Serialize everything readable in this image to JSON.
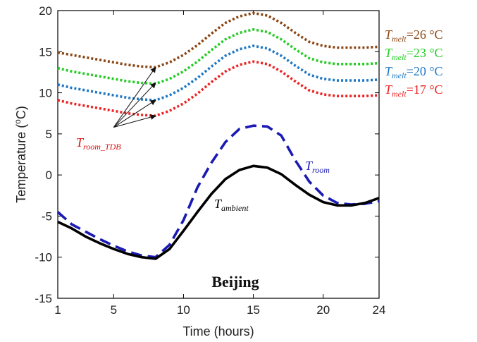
{
  "chart_data": {
    "type": "line",
    "xlabel_main": "Time (hours)",
    "ylabel_pre": "Temperature (",
    "ylabel_sup": "o",
    "ylabel_post": "C)",
    "xlim": [
      1,
      24
    ],
    "ylim": [
      -15,
      20
    ],
    "xticks": [
      "1",
      "5",
      "10",
      "15",
      "20",
      "24"
    ],
    "yticks": [
      "-15",
      "-10",
      "-5",
      "0",
      "5",
      "10",
      "15",
      "20"
    ],
    "grid": false,
    "region_label": "Beijing",
    "x": [
      1,
      2,
      3,
      4,
      5,
      6,
      7,
      8,
      9,
      10,
      11,
      12,
      13,
      14,
      15,
      16,
      17,
      18,
      19,
      20,
      21,
      22,
      23,
      24
    ],
    "series": [
      {
        "key": "t26",
        "color": "#8B4513",
        "style": "dotted",
        "label_main": "T",
        "label_sub": "melt",
        "label_value": "=26 °C",
        "values": [
          14.9,
          14.6,
          14.3,
          14.0,
          13.7,
          13.4,
          13.2,
          13.1,
          13.7,
          14.6,
          15.8,
          17.2,
          18.5,
          19.3,
          19.7,
          19.4,
          18.5,
          17.3,
          16.2,
          15.7,
          15.5,
          15.5,
          15.5,
          15.6
        ]
      },
      {
        "key": "t23",
        "color": "#22CC22",
        "style": "dotted",
        "label_main": "T",
        "label_sub": "melt",
        "label_value": "=23 °C",
        "values": [
          13.0,
          12.6,
          12.3,
          12.0,
          11.7,
          11.4,
          11.2,
          11.1,
          11.7,
          12.6,
          13.8,
          15.2,
          16.5,
          17.3,
          17.7,
          17.4,
          16.5,
          15.3,
          14.2,
          13.7,
          13.5,
          13.5,
          13.5,
          13.6
        ]
      },
      {
        "key": "t20",
        "color": "#1F77C4",
        "style": "dotted",
        "label_main": "T",
        "label_sub": "melt",
        "label_value": "=20 °C",
        "values": [
          11.0,
          10.6,
          10.3,
          10.0,
          9.7,
          9.4,
          9.2,
          9.1,
          9.7,
          10.6,
          11.8,
          13.2,
          14.5,
          15.3,
          15.7,
          15.4,
          14.5,
          13.3,
          12.2,
          11.7,
          11.5,
          11.5,
          11.5,
          11.6
        ]
      },
      {
        "key": "t17",
        "color": "#EE2222",
        "style": "dotted",
        "label_main": "T",
        "label_sub": "melt",
        "label_value": "=17 °C",
        "values": [
          9.1,
          8.7,
          8.4,
          8.1,
          7.8,
          7.5,
          7.3,
          7.2,
          7.8,
          8.7,
          9.9,
          11.3,
          12.6,
          13.4,
          13.8,
          13.5,
          12.6,
          11.4,
          10.3,
          9.8,
          9.6,
          9.6,
          9.6,
          9.7
        ]
      },
      {
        "key": "troom",
        "color": "#1A1AB4",
        "style": "dashed",
        "label_main": "T",
        "label_sub": "room",
        "label_value": "",
        "values": [
          -4.5,
          -6.0,
          -6.9,
          -7.8,
          -8.6,
          -9.3,
          -9.8,
          -10.0,
          -8.5,
          -5.5,
          -1.5,
          1.5,
          4.0,
          5.6,
          6.0,
          5.9,
          4.8,
          1.8,
          -0.8,
          -2.5,
          -3.4,
          -3.6,
          -3.5,
          -3.2
        ]
      },
      {
        "key": "tambient",
        "color": "#000000",
        "style": "solid",
        "label_main": "T",
        "label_sub": "ambient",
        "label_value": "",
        "values": [
          -5.7,
          -6.5,
          -7.5,
          -8.3,
          -9.0,
          -9.6,
          -10.0,
          -10.2,
          -9.0,
          -6.8,
          -4.5,
          -2.3,
          -0.5,
          0.6,
          1.1,
          0.9,
          0.1,
          -1.2,
          -2.4,
          -3.3,
          -3.7,
          -3.7,
          -3.4,
          -2.8
        ]
      }
    ],
    "annotation_tdb": {
      "main": "T",
      "sub": "room_TDB",
      "color": "#DD1111",
      "from": [
        5.0,
        5.8
      ],
      "targets": [
        [
          8.0,
          13.1
        ],
        [
          8.0,
          11.2
        ],
        [
          8.0,
          9.1
        ],
        [
          8.0,
          7.2
        ]
      ]
    }
  }
}
